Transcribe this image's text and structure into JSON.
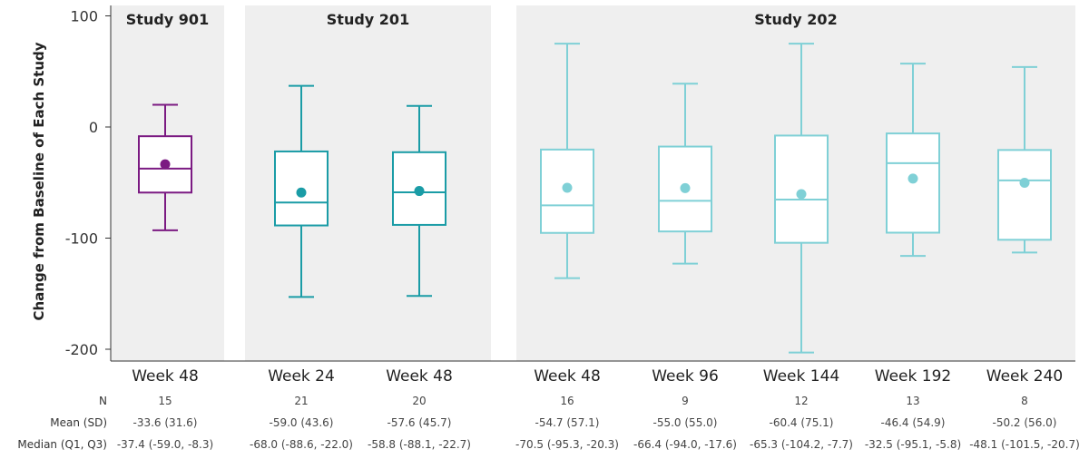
{
  "chart_data": {
    "type": "box",
    "ylabel": "Change from Baseline of Each Study",
    "ylim": [
      -210,
      100
    ],
    "yticks": [
      100,
      0,
      -100,
      -200
    ],
    "panels": [
      {
        "title": "Study 901",
        "color": "#7b1a82",
        "groups": [
          0
        ]
      },
      {
        "title": "Study 201",
        "color": "#1a9ca6",
        "groups": [
          1,
          2
        ]
      },
      {
        "title": "Study 202",
        "color": "#7fd0d6",
        "groups": [
          3,
          4,
          5,
          6,
          7
        ]
      }
    ],
    "groups": [
      {
        "label": "Week 48",
        "n": "15",
        "mean_sd": "-33.6 (31.6)",
        "median_q": "-37.4 (-59.0, -8.3)",
        "mean": -33.6,
        "median": -37.4,
        "q1": -59.0,
        "q3": -8.3,
        "min": -93,
        "max": 20
      },
      {
        "label": "Week 24",
        "n": "21",
        "mean_sd": "-59.0 (43.6)",
        "median_q": "-68.0 (-88.6, -22.0)",
        "mean": -59.0,
        "median": -68.0,
        "q1": -88.6,
        "q3": -22.0,
        "min": -153,
        "max": 37
      },
      {
        "label": "Week 48",
        "n": "20",
        "mean_sd": "-57.6 (45.7)",
        "median_q": "-58.8 (-88.1, -22.7)",
        "mean": -57.6,
        "median": -58.8,
        "q1": -88.1,
        "q3": -22.7,
        "min": -152,
        "max": 19
      },
      {
        "label": "Week 48",
        "n": "16",
        "mean_sd": "-54.7 (57.1)",
        "median_q": "-70.5 (-95.3, -20.3)",
        "mean": -54.7,
        "median": -70.5,
        "q1": -95.3,
        "q3": -20.3,
        "min": -136,
        "max": 75
      },
      {
        "label": "Week 96",
        "n": "9",
        "mean_sd": "-55.0 (55.0)",
        "median_q": "-66.4 (-94.0, -17.6)",
        "mean": -55.0,
        "median": -66.4,
        "q1": -94.0,
        "q3": -17.6,
        "min": -123,
        "max": 39
      },
      {
        "label": "Week 144",
        "n": "12",
        "mean_sd": "-60.4 (75.1)",
        "median_q": "-65.3 (-104.2, -7.7)",
        "mean": -60.4,
        "median": -65.3,
        "q1": -104.2,
        "q3": -7.7,
        "min": -203,
        "max": 75
      },
      {
        "label": "Week 192",
        "n": "13",
        "mean_sd": "-46.4 (54.9)",
        "median_q": "-32.5 (-95.1, -5.8)",
        "mean": -46.4,
        "median": -32.5,
        "q1": -95.1,
        "q3": -5.8,
        "min": -116,
        "max": 57
      },
      {
        "label": "Week 240",
        "n": "8",
        "mean_sd": "-50.2 (56.0)",
        "median_q": "-48.1 (-101.5, -20.7)",
        "mean": -50.2,
        "median": -48.1,
        "q1": -101.5,
        "q3": -20.7,
        "min": -113,
        "max": 54
      }
    ],
    "row_labels": {
      "n": "N",
      "mean_sd": "Mean (SD)",
      "median_q": "Median (Q1, Q3)"
    }
  }
}
